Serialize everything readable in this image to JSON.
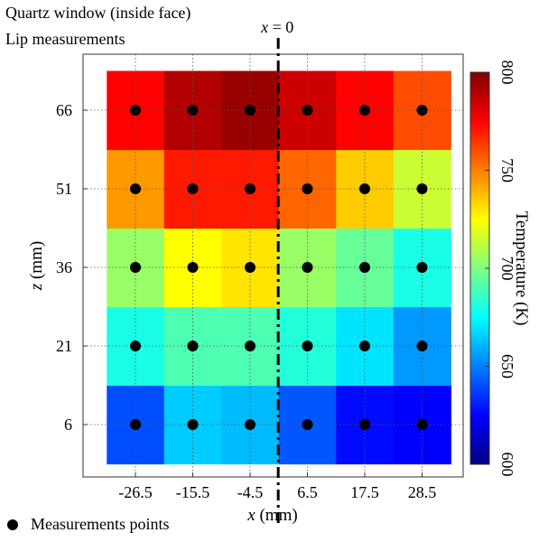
{
  "title_lines": [
    "Quartz window (inside face)",
    "Lip measurements"
  ],
  "chart_data": {
    "type": "heatmap",
    "x": [
      -26.5,
      -15.5,
      -4.5,
      6.5,
      17.5,
      28.5
    ],
    "y": [
      6,
      21,
      36,
      51,
      66
    ],
    "x_tick_labels": [
      "-26.5",
      "-15.5",
      "-4.5",
      "6.5",
      "17.5",
      "28.5"
    ],
    "y_tick_labels": [
      "6",
      "21",
      "36",
      "51",
      "66"
    ],
    "xlabel_var": "x",
    "xlabel_unit": " (mm)",
    "ylabel_var": "z",
    "ylabel_unit": " (mm)",
    "colorbar_label": "Temperature (K)",
    "colorbar_range": [
      600,
      800
    ],
    "colorbar_ticks": [
      "600",
      "650",
      "700",
      "750",
      "800"
    ],
    "colormap": [
      "#00007f",
      "#0000ff",
      "#007fff",
      "#00ffff",
      "#7fff7f",
      "#ffff00",
      "#ff7f00",
      "#ff0000",
      "#7f0000"
    ],
    "grid": true,
    "vertical_line": {
      "x": 0.9,
      "label_var": "x",
      "label_rest": " = 0"
    },
    "values": [
      [
        640,
        665,
        662,
        642,
        627,
        625
      ],
      [
        680,
        690,
        690,
        682,
        670,
        655
      ],
      [
        705,
        725,
        730,
        705,
        695,
        680
      ],
      [
        745,
        770,
        770,
        755,
        735,
        715
      ],
      [
        775,
        790,
        795,
        785,
        775,
        760
      ]
    ],
    "legend": {
      "marker": "filled circle",
      "label": "Measurements points",
      "placement": "bottom-left"
    }
  }
}
